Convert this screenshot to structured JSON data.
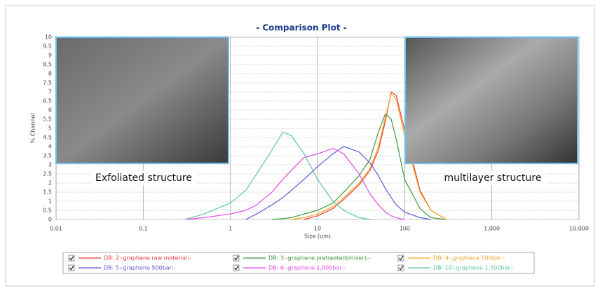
{
  "chart_data": {
    "type": "line",
    "title": "- Comparison Plot -",
    "xlabel": "Size (um)",
    "ylabel": "% Channel",
    "xscale": "log",
    "grid": true,
    "xlim": [
      0.01,
      10000
    ],
    "xticks": [
      0.01,
      0.1,
      1,
      10,
      100,
      {
        "value": 1000,
        "label": "1,000"
      },
      {
        "value": 10000,
        "label": "10,000"
      }
    ],
    "ylim": [
      0,
      10
    ],
    "yticks": [
      0,
      0.5,
      1,
      1.5,
      2,
      2.5,
      3,
      3.5,
      4,
      4.5,
      5,
      5.5,
      6,
      6.5,
      7,
      7.5,
      8,
      8.5,
      9,
      9.5,
      10
    ],
    "annotations": [
      "Exfoliated structure",
      "multilayer structure"
    ],
    "x": [
      0.3,
      0.5,
      0.7,
      1,
      1.5,
      2,
      3,
      4,
      5,
      7,
      10,
      15,
      20,
      30,
      40,
      50,
      60,
      70,
      80,
      100,
      150,
      200,
      300
    ],
    "series": [
      {
        "name": "DB: 2:-graphene raw material:-",
        "color": "#e83a3a",
        "values": [
          null,
          null,
          null,
          null,
          null,
          null,
          null,
          null,
          null,
          0,
          0.2,
          0.6,
          1.1,
          1.9,
          2.7,
          3.8,
          5.4,
          7.0,
          6.8,
          4.9,
          1.6,
          0.5,
          0
        ]
      },
      {
        "name": "DB: 3:-graphene pretreated(mixer):-",
        "color": "#3a9a3a",
        "values": [
          null,
          null,
          null,
          null,
          null,
          null,
          0,
          0.05,
          0.1,
          0.3,
          0.5,
          0.9,
          1.5,
          2.4,
          3.3,
          4.8,
          5.8,
          5.5,
          4.4,
          2.2,
          0.6,
          0.1,
          0
        ]
      },
      {
        "name": "DB: 4:-graphene 100bar:-",
        "color": "#f5a623",
        "values": [
          null,
          null,
          null,
          null,
          null,
          null,
          null,
          null,
          0,
          0.1,
          0.3,
          0.7,
          1.2,
          2.0,
          2.8,
          4.0,
          5.6,
          6.9,
          6.6,
          4.6,
          1.5,
          0.5,
          0
        ]
      },
      {
        "name": "DB: 5:-graphene 500bar:-",
        "color": "#5a5ad6",
        "values": [
          null,
          null,
          null,
          null,
          0,
          0.3,
          0.8,
          1.2,
          1.6,
          2.2,
          2.9,
          3.6,
          4.0,
          3.7,
          3.1,
          2.4,
          1.7,
          1.2,
          0.8,
          0.4,
          0.1,
          0,
          null
        ]
      },
      {
        "name": "DB: 6:-graphene 1,000bar:-",
        "color": "#e84ae8",
        "values": [
          0,
          0.1,
          0.2,
          0.3,
          0.5,
          0.8,
          1.5,
          2.2,
          2.7,
          3.4,
          3.6,
          3.9,
          3.6,
          2.5,
          1.4,
          0.8,
          0.4,
          0.2,
          0.1,
          0,
          null,
          null,
          null
        ]
      },
      {
        "name": "DB: 10:-graphene 1,500bar:-",
        "color": "#5cc8a6",
        "values": [
          0,
          0.3,
          0.6,
          0.9,
          1.6,
          2.5,
          3.8,
          4.8,
          4.6,
          3.6,
          2.2,
          1.0,
          0.5,
          0.1,
          0,
          null,
          null,
          null,
          null,
          null,
          null,
          null,
          null
        ]
      }
    ]
  }
}
